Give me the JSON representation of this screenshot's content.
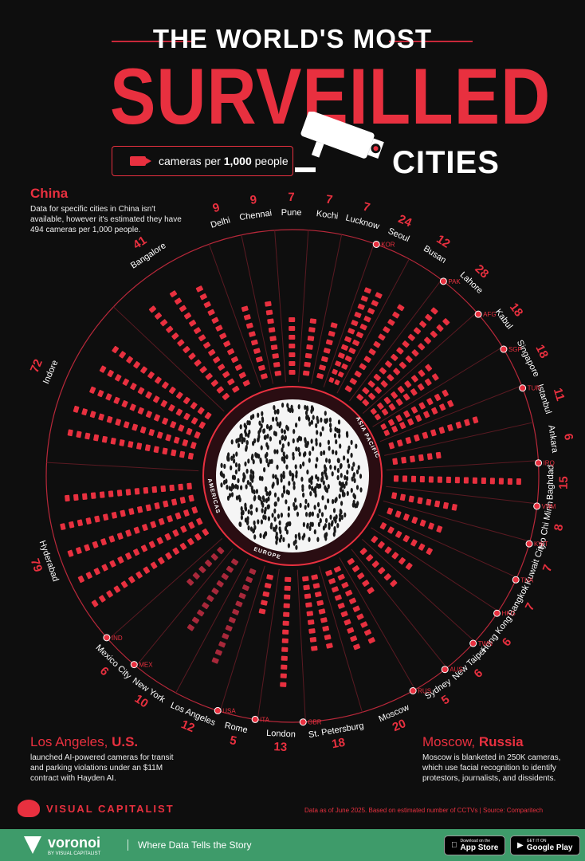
{
  "header": {
    "title_line1": "THE WORLD'S MOST",
    "title_line2": "SURVEILLED",
    "title_line3": "CITIES",
    "legend_pre": "cameras per ",
    "legend_bold": "1,000",
    "legend_post": " people"
  },
  "notes": {
    "china": {
      "heading": "China",
      "body": "Data for specific cities in China isn't available, however it's estimated they have 494 cameras per 1,000 people."
    },
    "la": {
      "heading_lead": "Los Angeles, ",
      "heading_bold": "U.S.",
      "body": "launched AI-powered cameras for transit and parking violations under an $11M contract with Hayden AI."
    },
    "moscow": {
      "heading_lead": "Moscow, ",
      "heading_bold": "Russia",
      "body": "Moscow is blanketed in 250K cameras, which use facial recognition to identify protestors, journalists, and dissidents."
    }
  },
  "regions": [
    "ASIA PACIFIC",
    "EUROPE",
    "AMERICAS"
  ],
  "chart_data": {
    "type": "bar",
    "subtype": "radial",
    "unit": "cameras per 1,000 people",
    "categories": [
      "Delhi",
      "Chennai",
      "Pune",
      "Kochi",
      "Lucknow",
      "Seoul",
      "Busan",
      "Lahore",
      "Kabul",
      "Singapore",
      "Istanbul",
      "Ankara",
      "Baghdad",
      "Ho Chi Minh",
      "Kuwait City",
      "Bangkok",
      "Hong Kong",
      "New Taipei",
      "Sydney",
      "Moscow",
      "St. Petersburg",
      "London",
      "Rome",
      "Los Angeles",
      "New York",
      "Mexico City",
      "Hyderabad",
      "Indore",
      "Bangalore"
    ],
    "values": [
      9,
      9,
      7,
      7,
      7,
      24,
      12,
      28,
      18,
      18,
      11,
      6,
      15,
      8,
      7,
      7,
      6,
      6,
      5,
      20,
      18,
      13,
      5,
      12,
      10,
      6,
      79,
      72,
      41
    ],
    "countries": [
      {
        "code": "IND",
        "name": "India",
        "cities": [
          "Hyderabad",
          "Indore",
          "Bangalore",
          "Delhi",
          "Chennai",
          "Pune",
          "Kochi",
          "Lucknow"
        ]
      },
      {
        "code": "KOR",
        "cities": [
          "Seoul",
          "Busan"
        ]
      },
      {
        "code": "PAK",
        "cities": [
          "Lahore"
        ]
      },
      {
        "code": "AFG",
        "cities": [
          "Kabul"
        ]
      },
      {
        "code": "SGP",
        "cities": [
          "Singapore"
        ]
      },
      {
        "code": "TUR",
        "cities": [
          "Istanbul",
          "Ankara"
        ]
      },
      {
        "code": "IRQ",
        "cities": [
          "Baghdad"
        ]
      },
      {
        "code": "VNM",
        "cities": [
          "Ho Chi Minh"
        ]
      },
      {
        "code": "KWT",
        "cities": [
          "Kuwait City"
        ]
      },
      {
        "code": "THA",
        "cities": [
          "Bangkok"
        ]
      },
      {
        "code": "HKG",
        "cities": [
          "Hong Kong"
        ]
      },
      {
        "code": "TWN",
        "cities": [
          "New Taipei"
        ]
      },
      {
        "code": "AUS",
        "cities": [
          "Sydney"
        ]
      },
      {
        "code": "RUS",
        "cities": [
          "Moscow",
          "St. Petersburg"
        ]
      },
      {
        "code": "GBR",
        "cities": [
          "London"
        ]
      },
      {
        "code": "ITA",
        "cities": [
          "Rome"
        ]
      },
      {
        "code": "USA",
        "cities": [
          "Los Angeles",
          "New York"
        ]
      },
      {
        "code": "MEX",
        "cities": [
          "Mexico City"
        ]
      }
    ],
    "colors": {
      "asia": "#e8303f",
      "europe": "#e8303f",
      "americas": "#a8283a"
    }
  },
  "footer": {
    "brand": "VISUAL CAPITALIST",
    "source": "Data as of June 2025. Based on estimated number of CCTVs | Source: Comparitech",
    "voronoi": "voronoi",
    "voronoi_sub": "BY VISUAL CAPITALIST",
    "tagline": "Where Data Tells the Story",
    "appstore_small": "Download on the",
    "appstore": "App Store",
    "googleplay_small": "GET IT ON",
    "googleplay": "Google Play"
  }
}
